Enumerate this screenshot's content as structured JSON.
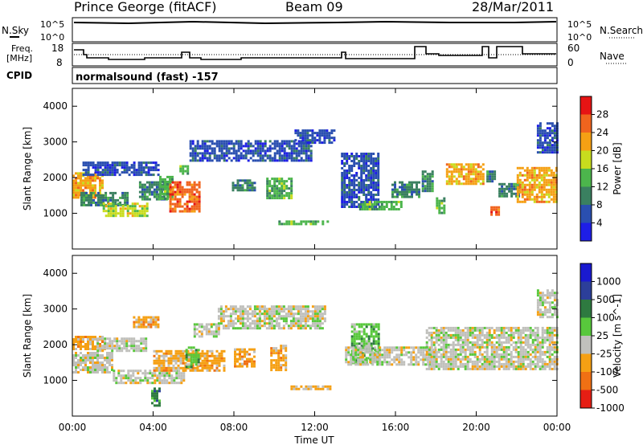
{
  "header": {
    "station": "Prince George (fitACF)",
    "beam": "Beam 09",
    "date": "28/Mar/2011"
  },
  "noise_panel": {
    "left_label": "N.Sky",
    "right_label": "N.Search",
    "tick_top": "10^5",
    "tick_bottom": "10^0"
  },
  "freq_panel": {
    "left_label_line1": "Freq.",
    "left_label_line2": "[MHz]",
    "left_ticks": [
      "18",
      "8"
    ],
    "right_ticks": [
      "60",
      "0"
    ],
    "right_label": "Nave"
  },
  "cpid": {
    "label": "CPID",
    "mode": "normalsound (fast) -157"
  },
  "colors": {
    "power": [
      "#1e1ee6",
      "#2a4fb0",
      "#3a8060",
      "#4cb54c",
      "#c8dc1e",
      "#f5a014",
      "#f0641e",
      "#e61414"
    ],
    "velocity": [
      "#1a1ad0",
      "#2c3f9a",
      "#2e7a40",
      "#58c83c",
      "#c0c0bc",
      "#f5a014",
      "#f07014",
      "#e61e14"
    ],
    "ground_scatter": "#bebebe"
  },
  "chart_data": [
    {
      "type": "heatmap",
      "name": "power",
      "ylabel": "Slant Range [km]",
      "xlim": [
        0,
        24
      ],
      "ylim": [
        0,
        4500
      ],
      "y_ticks": [
        "1000",
        "2000",
        "3000",
        "4000"
      ],
      "colorbar": {
        "label": "Power [dB]",
        "ticks": [
          "4",
          "8",
          "12",
          "16",
          "20",
          "24",
          "28"
        ],
        "range": [
          0,
          32
        ]
      },
      "bands": [
        {
          "t": [
            0,
            1.5
          ],
          "r": [
            1450,
            2150
          ],
          "v": 20
        },
        {
          "t": [
            0.4,
            2.7
          ],
          "r": [
            1250,
            1600
          ],
          "v": 10
        },
        {
          "t": [
            0.5,
            4.3
          ],
          "r": [
            2050,
            2450
          ],
          "v": 6
        },
        {
          "t": [
            1.5,
            3.7
          ],
          "r": [
            950,
            1300
          ],
          "v": 16
        },
        {
          "t": [
            3.3,
            4.8
          ],
          "r": [
            1400,
            1900
          ],
          "v": 8
        },
        {
          "t": [
            4.3,
            5.0
          ],
          "r": [
            1400,
            2050
          ],
          "v": 14
        },
        {
          "t": [
            4.8,
            6.3
          ],
          "r": [
            1050,
            1900
          ],
          "v": 27
        },
        {
          "t": [
            5.3,
            5.7
          ],
          "r": [
            2100,
            2350
          ],
          "v": 12
        },
        {
          "t": [
            5.8,
            11.8
          ],
          "r": [
            2450,
            3050
          ],
          "v": 4
        },
        {
          "t": [
            7.9,
            9.0
          ],
          "r": [
            1650,
            1950
          ],
          "v": 10
        },
        {
          "t": [
            9.6,
            10.8
          ],
          "r": [
            1400,
            2000
          ],
          "v": 12
        },
        {
          "t": [
            11.0,
            13.0
          ],
          "r": [
            2950,
            3350
          ],
          "v": 5
        },
        {
          "t": [
            10.2,
            12.6
          ],
          "r": [
            730,
            800
          ],
          "v": 14
        },
        {
          "t": [
            13.3,
            15.2
          ],
          "r": [
            1150,
            2700
          ],
          "v": 6
        },
        {
          "t": [
            14.2,
            16.3
          ],
          "r": [
            1100,
            1350
          ],
          "v": 12
        },
        {
          "t": [
            15.8,
            17.2
          ],
          "r": [
            1450,
            1900
          ],
          "v": 8
        },
        {
          "t": [
            17.3,
            17.8
          ],
          "r": [
            1600,
            2200
          ],
          "v": 10
        },
        {
          "t": [
            18.0,
            18.4
          ],
          "r": [
            1000,
            1450
          ],
          "v": 14
        },
        {
          "t": [
            18.5,
            20.4
          ],
          "r": [
            1800,
            2400
          ],
          "v": 20
        },
        {
          "t": [
            20.5,
            20.9
          ],
          "r": [
            1900,
            2200
          ],
          "v": 10
        },
        {
          "t": [
            20.7,
            21.1
          ],
          "r": [
            950,
            1200
          ],
          "v": 26
        },
        {
          "t": [
            21.1,
            22.1
          ],
          "r": [
            1450,
            1850
          ],
          "v": 8
        },
        {
          "t": [
            22.0,
            24.0
          ],
          "r": [
            1350,
            2300
          ],
          "v": 20
        },
        {
          "t": [
            23.0,
            24.0
          ],
          "r": [
            2700,
            3550
          ],
          "v": 5
        }
      ]
    },
    {
      "type": "heatmap",
      "name": "velocity",
      "ylabel": "Slant Range [km]",
      "xlabel": "Time UT",
      "xlim": [
        0,
        24
      ],
      "ylim": [
        0,
        4500
      ],
      "x_ticks": [
        "00:00",
        "04:00",
        "08:00",
        "12:00",
        "16:00",
        "20:00",
        "00:00"
      ],
      "y_ticks": [
        "1000",
        "2000",
        "3000",
        "4000"
      ],
      "colorbar": {
        "label": "Velocity [m s^-1]",
        "ticks": [
          "1000",
          "500",
          "100",
          "25",
          "-25",
          "-100",
          "-500",
          "-1000"
        ]
      },
      "bands": [
        {
          "t": [
            0,
            2.0
          ],
          "r": [
            1200,
            1800
          ],
          "c": 4
        },
        {
          "t": [
            0,
            1.6
          ],
          "r": [
            1850,
            2250
          ],
          "c": 5
        },
        {
          "t": [
            2.0,
            5.5
          ],
          "r": [
            900,
            1300
          ],
          "c": 4
        },
        {
          "t": [
            1.2,
            3.6
          ],
          "r": [
            1800,
            2200
          ],
          "c": 4
        },
        {
          "t": [
            3.0,
            4.2
          ],
          "r": [
            2500,
            2800
          ],
          "c": 5
        },
        {
          "t": [
            4.0,
            7.5
          ],
          "r": [
            1300,
            1850
          ],
          "c": 5
        },
        {
          "t": [
            5.6,
            6.3
          ],
          "r": [
            1350,
            1950
          ],
          "c": 3
        },
        {
          "t": [
            6.0,
            7.2
          ],
          "r": [
            2200,
            2600
          ],
          "c": 4
        },
        {
          "t": [
            7.2,
            12.5
          ],
          "r": [
            2450,
            3100
          ],
          "c": 4
        },
        {
          "t": [
            3.9,
            4.3
          ],
          "r": [
            300,
            800
          ],
          "c": 2
        },
        {
          "t": [
            8.0,
            9.0
          ],
          "r": [
            1400,
            1900
          ],
          "c": 5
        },
        {
          "t": [
            9.8,
            10.6
          ],
          "r": [
            1300,
            2000
          ],
          "c": 5
        },
        {
          "t": [
            10.8,
            12.8
          ],
          "r": [
            780,
            860
          ],
          "c": 5
        },
        {
          "t": [
            13.8,
            15.2
          ],
          "r": [
            1500,
            2600
          ],
          "c": 3
        },
        {
          "t": [
            13.5,
            18.0
          ],
          "r": [
            1450,
            1950
          ],
          "c": 4
        },
        {
          "t": [
            17.5,
            24.0
          ],
          "r": [
            1350,
            2500
          ],
          "c": 4
        },
        {
          "t": [
            23.0,
            24.0
          ],
          "r": [
            2800,
            3550
          ],
          "c": 4
        }
      ]
    }
  ],
  "x_title": "Time UT"
}
